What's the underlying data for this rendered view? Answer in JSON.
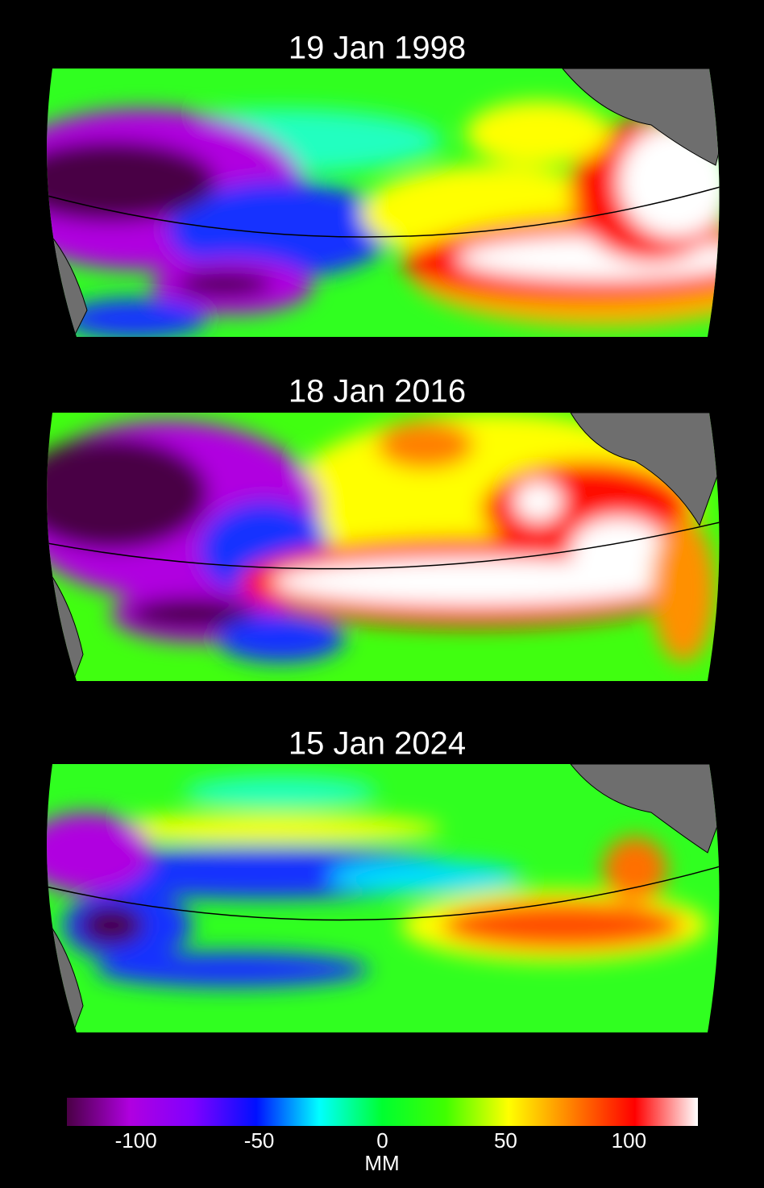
{
  "panels": [
    {
      "title": "19 Jan 1998"
    },
    {
      "title": "18 Jan 2016"
    },
    {
      "title": "15 Jan 2024"
    }
  ],
  "colorbar": {
    "label": "MM",
    "lim": [
      -128,
      128
    ],
    "ticks": [
      -100,
      -50,
      0,
      50,
      100
    ],
    "colors": [
      "#4a0045",
      "#b000e0",
      "#8000ff",
      "#0010ff",
      "#00ffff",
      "#00ff30",
      "#40ff00",
      "#ffff00",
      "#ff8000",
      "#ff0000",
      "#ffffff"
    ]
  }
}
